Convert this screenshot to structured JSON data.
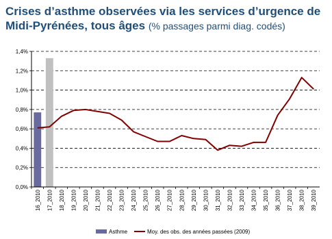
{
  "title": {
    "main": "Crises d’asthme observées via les services d’urgence de Midi-Pyrénées, tous âges",
    "sub": "(% passages parmi diag. codés)"
  },
  "chart_data": {
    "type": "bar+line",
    "ylim": [
      0,
      1.4
    ],
    "yticks": [
      "0,0%",
      "0,2%",
      "0,4%",
      "0,6%",
      "0,8%",
      "1,0%",
      "1,2%",
      "1,4%"
    ],
    "categories": [
      "16_2010",
      "17_2010",
      "18_2010",
      "19_2010",
      "20_2010",
      "21_2010",
      "22_2010",
      "23_2010",
      "24_2010",
      "25_2010",
      "26_2010",
      "27_2010",
      "28_2010",
      "29_2010",
      "30_2010",
      "31_2010",
      "32_2010",
      "33_2010",
      "34_2010",
      "35_2010",
      "36_2010",
      "37_2010",
      "38_2010",
      "39_2010"
    ],
    "series": [
      {
        "name": "Asthme",
        "type": "bar",
        "values": [
          0.77,
          1.33,
          null,
          null,
          null,
          null,
          null,
          null,
          null,
          null,
          null,
          null,
          null,
          null,
          null,
          null,
          null,
          null,
          null,
          null,
          null,
          null,
          null,
          null
        ],
        "colors": [
          "#6a6a9e",
          "#c0c0c0"
        ]
      },
      {
        "name": "Moy. des obs. des années passées (2009)",
        "type": "line",
        "color": "#800000",
        "values": [
          0.61,
          0.62,
          0.73,
          0.79,
          0.8,
          0.78,
          0.76,
          0.69,
          0.57,
          0.52,
          0.47,
          0.47,
          0.53,
          0.5,
          0.49,
          0.38,
          0.43,
          0.42,
          0.46,
          0.46,
          0.74,
          0.91,
          1.13,
          1.01
        ]
      }
    ],
    "grid": true,
    "legend": "bottom"
  }
}
